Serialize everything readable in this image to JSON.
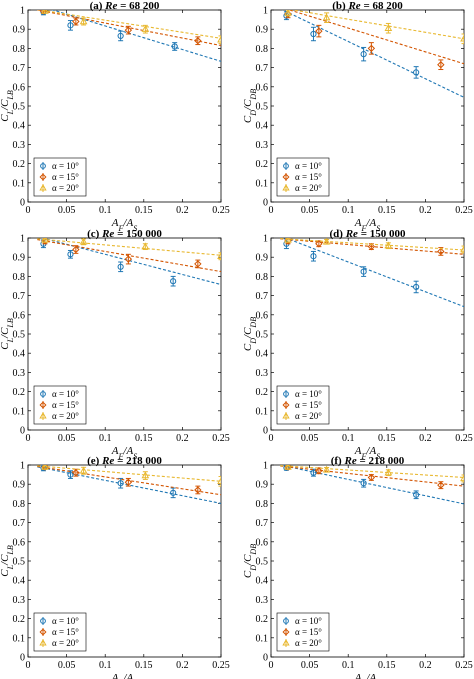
{
  "colors": {
    "a10": "#1f77b4",
    "a15": "#d35400",
    "a20": "#e8b830"
  },
  "chart_data": [
    {
      "type": "scatter",
      "title": "(a) Re = 68 200",
      "title_prefix": "(a) ",
      "title_re": "Re",
      "title_value": " = 68 200",
      "xlabel": "A_F/A_S",
      "ylabel": "C_L/C_LB",
      "xlim": [
        0,
        0.25
      ],
      "ylim": [
        0,
        1
      ],
      "xticks": [
        "0",
        "0.05",
        "0.1",
        "0.15",
        "0.2",
        "0.25"
      ],
      "yticks": [
        "0",
        "0.1",
        "0.2",
        "0.3",
        "0.4",
        "0.5",
        "0.6",
        "0.7",
        "0.8",
        "0.9",
        "1"
      ],
      "legend": "lower-left",
      "grid": false,
      "series": [
        {
          "name": "α = 10°",
          "color_key": "a10",
          "x": [
            0.02,
            0.055,
            0.12,
            0.19
          ],
          "y": [
            0.99,
            0.92,
            0.865,
            0.81
          ],
          "err": [
            0.015,
            0.025,
            0.025,
            0.02
          ],
          "fit": [
            1.04,
            -1.23
          ]
        },
        {
          "name": "α = 15°",
          "color_key": "a15",
          "x": [
            0.02,
            0.062,
            0.13,
            0.22
          ],
          "y": [
            0.995,
            0.94,
            0.895,
            0.84
          ],
          "err": [
            0.012,
            0.018,
            0.02,
            0.02
          ],
          "fit": [
            1.01,
            -0.78
          ]
        },
        {
          "name": "α = 20°",
          "color_key": "a20",
          "x": [
            0.022,
            0.072,
            0.152,
            0.25
          ],
          "y": [
            0.995,
            0.94,
            0.9,
            0.845
          ],
          "err": [
            0.012,
            0.018,
            0.02,
            0.02
          ],
          "fit": [
            1.01,
            -0.63
          ]
        }
      ]
    },
    {
      "type": "scatter",
      "title": "(b) Re = 68 200",
      "title_prefix": "(b) ",
      "title_re": "Re",
      "title_value": " = 68 200",
      "xlabel": "A_F/A_S",
      "ylabel": "C_D/C_DB",
      "xlim": [
        0,
        0.25
      ],
      "ylim": [
        0,
        1
      ],
      "xticks": [
        "0",
        "0.05",
        "0.1",
        "0.15",
        "0.2",
        "0.25"
      ],
      "yticks": [
        "0",
        "0.1",
        "0.2",
        "0.3",
        "0.4",
        "0.5",
        "0.6",
        "0.7",
        "0.8",
        "0.9",
        "1"
      ],
      "legend": "lower-left",
      "grid": false,
      "series": [
        {
          "name": "α = 10°",
          "color_key": "a10",
          "x": [
            0.02,
            0.055,
            0.12,
            0.188
          ],
          "y": [
            0.97,
            0.875,
            0.77,
            0.675
          ],
          "err": [
            0.02,
            0.035,
            0.035,
            0.03
          ],
          "fit": [
            1.03,
            -1.94
          ]
        },
        {
          "name": "α = 15°",
          "color_key": "a15",
          "x": [
            0.022,
            0.062,
            0.13,
            0.22
          ],
          "y": [
            0.98,
            0.89,
            0.8,
            0.715
          ],
          "err": [
            0.02,
            0.03,
            0.03,
            0.025
          ],
          "fit": [
            1.03,
            -1.24
          ]
        },
        {
          "name": "α = 20°",
          "color_key": "a20",
          "x": [
            0.022,
            0.072,
            0.152,
            0.25
          ],
          "y": [
            0.985,
            0.96,
            0.905,
            0.85
          ],
          "err": [
            0.015,
            0.025,
            0.025,
            0.025
          ],
          "fit": [
            1.02,
            -0.68
          ]
        }
      ]
    },
    {
      "type": "scatter",
      "title": "(c) Re = 150 000",
      "title_prefix": "(c) ",
      "title_re": "Re",
      "title_value": " = 150 000",
      "xlabel": "A_F/A_S",
      "ylabel": "C_L/C_LB",
      "xlim": [
        0,
        0.25
      ],
      "ylim": [
        0,
        1
      ],
      "xticks": [
        "0",
        "0.05",
        "0.1",
        "0.15",
        "0.2",
        "0.25"
      ],
      "yticks": [
        "0",
        "0.1",
        "0.2",
        "0.3",
        "0.4",
        "0.5",
        "0.6",
        "0.7",
        "0.8",
        "0.9",
        "1"
      ],
      "legend": "lower-left",
      "grid": false,
      "series": [
        {
          "name": "α = 10°",
          "color_key": "a10",
          "x": [
            0.02,
            0.055,
            0.12,
            0.188
          ],
          "y": [
            0.97,
            0.915,
            0.85,
            0.775
          ],
          "err": [
            0.02,
            0.02,
            0.025,
            0.025
          ],
          "fit": [
            1.02,
            -1.05
          ]
        },
        {
          "name": "α = 15°",
          "color_key": "a15",
          "x": [
            0.022,
            0.062,
            0.13,
            0.22
          ],
          "y": [
            0.985,
            0.94,
            0.89,
            0.865
          ],
          "err": [
            0.015,
            0.02,
            0.025,
            0.02
          ],
          "fit": [
            1.0,
            -0.7
          ]
        },
        {
          "name": "α = 20°",
          "color_key": "a20",
          "x": [
            0.022,
            0.072,
            0.152,
            0.25
          ],
          "y": [
            0.99,
            0.98,
            0.955,
            0.905
          ],
          "err": [
            0.012,
            0.015,
            0.015,
            0.018
          ],
          "fit": [
            1.0,
            -0.36
          ]
        }
      ]
    },
    {
      "type": "scatter",
      "title": "(d) Re = 150 000",
      "title_prefix": "(d) ",
      "title_re": "Re",
      "title_value": " = 150 000",
      "xlabel": "A_F/A_S",
      "ylabel": "C_D/C_DB",
      "xlim": [
        0,
        0.25
      ],
      "ylim": [
        0,
        1
      ],
      "xticks": [
        "0",
        "0.05",
        "0.1",
        "0.15",
        "0.2",
        "0.25"
      ],
      "yticks": [
        "0",
        "0.1",
        "0.2",
        "0.3",
        "0.4",
        "0.5",
        "0.6",
        "0.7",
        "0.8",
        "0.9",
        "1"
      ],
      "legend": "lower-left",
      "grid": false,
      "series": [
        {
          "name": "α = 10°",
          "color_key": "a10",
          "x": [
            0.02,
            0.055,
            0.12,
            0.188
          ],
          "y": [
            0.97,
            0.905,
            0.825,
            0.745
          ],
          "err": [
            0.025,
            0.025,
            0.025,
            0.03
          ],
          "fit": [
            1.03,
            -1.55
          ]
        },
        {
          "name": "α = 15°",
          "color_key": "a15",
          "x": [
            0.022,
            0.062,
            0.13,
            0.22
          ],
          "y": [
            0.985,
            0.97,
            0.955,
            0.93
          ],
          "err": [
            0.015,
            0.015,
            0.015,
            0.02
          ],
          "fit": [
            1.0,
            -0.34
          ]
        },
        {
          "name": "α = 20°",
          "color_key": "a20",
          "x": [
            0.022,
            0.072,
            0.152,
            0.25
          ],
          "y": [
            0.99,
            0.98,
            0.96,
            0.94
          ],
          "err": [
            0.012,
            0.012,
            0.015,
            0.018
          ],
          "fit": [
            1.0,
            -0.25
          ]
        }
      ]
    },
    {
      "type": "scatter",
      "title": "(e) Re = 218 000",
      "title_prefix": "(e) ",
      "title_re": "Re",
      "title_value": " = 218 000",
      "xlabel": "A_F/A_S",
      "ylabel": "C_L/C_LB",
      "xlim": [
        0,
        0.25
      ],
      "ylim": [
        0,
        1
      ],
      "xticks": [
        "0",
        "0.05",
        "0.1",
        "0.15",
        "0.2",
        "0.25"
      ],
      "yticks": [
        "0",
        "0.1",
        "0.2",
        "0.3",
        "0.4",
        "0.5",
        "0.6",
        "0.7",
        "0.8",
        "0.9",
        "1"
      ],
      "legend": "lower-left",
      "grid": false,
      "series": [
        {
          "name": "α = 10°",
          "color_key": "a10",
          "x": [
            0.02,
            0.055,
            0.12,
            0.188
          ],
          "y": [
            0.985,
            0.95,
            0.905,
            0.855
          ],
          "err": [
            0.015,
            0.02,
            0.025,
            0.025
          ],
          "fit": [
            1.0,
            -0.8
          ]
        },
        {
          "name": "α = 15°",
          "color_key": "a15",
          "x": [
            0.022,
            0.062,
            0.13,
            0.22
          ],
          "y": [
            0.99,
            0.96,
            0.91,
            0.87
          ],
          "err": [
            0.012,
            0.018,
            0.02,
            0.02
          ],
          "fit": [
            1.0,
            -0.62
          ]
        },
        {
          "name": "α = 20°",
          "color_key": "a20",
          "x": [
            0.022,
            0.072,
            0.152,
            0.25
          ],
          "y": [
            0.99,
            0.97,
            0.945,
            0.915
          ],
          "err": [
            0.012,
            0.018,
            0.02,
            0.025
          ],
          "fit": [
            1.0,
            -0.34
          ]
        }
      ]
    },
    {
      "type": "scatter",
      "title": "(f) Re = 218 000",
      "title_prefix": "(f) ",
      "title_re": "Re",
      "title_value": " = 218 000",
      "xlabel": "A_F/A_S",
      "ylabel": "C_D/C_DB",
      "xlim": [
        0,
        0.25
      ],
      "ylim": [
        0,
        1
      ],
      "xticks": [
        "0",
        "0.05",
        "0.1",
        "0.15",
        "0.2",
        "0.25"
      ],
      "yticks": [
        "0",
        "0.1",
        "0.2",
        "0.3",
        "0.4",
        "0.5",
        "0.6",
        "0.7",
        "0.8",
        "0.9",
        "1"
      ],
      "legend": "lower-left",
      "grid": false,
      "series": [
        {
          "name": "α = 10°",
          "color_key": "a10",
          "x": [
            0.02,
            0.055,
            0.12,
            0.188
          ],
          "y": [
            0.985,
            0.96,
            0.905,
            0.845
          ],
          "err": [
            0.012,
            0.018,
            0.02,
            0.02
          ],
          "fit": [
            1.01,
            -0.85
          ]
        },
        {
          "name": "α = 15°",
          "color_key": "a15",
          "x": [
            0.022,
            0.062,
            0.13,
            0.22
          ],
          "y": [
            0.99,
            0.97,
            0.935,
            0.895
          ],
          "err": [
            0.012,
            0.015,
            0.015,
            0.018
          ],
          "fit": [
            1.0,
            -0.44
          ]
        },
        {
          "name": "α = 20°",
          "color_key": "a20",
          "x": [
            0.022,
            0.072,
            0.152,
            0.25
          ],
          "y": [
            0.99,
            0.975,
            0.96,
            0.93
          ],
          "err": [
            0.012,
            0.012,
            0.015,
            0.018
          ],
          "fit": [
            1.0,
            -0.26
          ]
        }
      ]
    }
  ]
}
